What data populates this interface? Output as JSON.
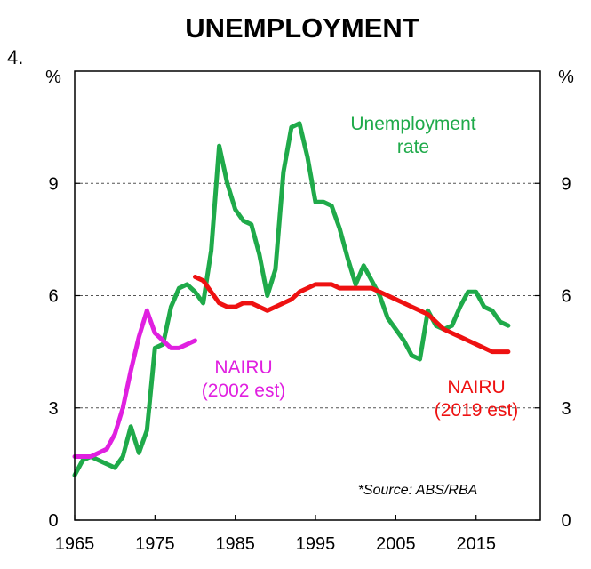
{
  "figure_number": "4.",
  "chart_data": {
    "type": "line",
    "title": "UNEMPLOYMENT",
    "y_unit_left": "%",
    "y_unit_right": "%",
    "xlim": [
      1965,
      2023
    ],
    "ylim": [
      0,
      12
    ],
    "x_ticks": [
      1965,
      1975,
      1985,
      1995,
      2005,
      2015
    ],
    "y_ticks": [
      0,
      3,
      6,
      9
    ],
    "grid": "horizontal dashed at 3, 6, 9",
    "source": "*Source: ABS/RBA",
    "series": [
      {
        "name": "Unemployment rate",
        "label_lines": [
          "Unemployment",
          "rate"
        ],
        "color": "#1faa4a",
        "x": [
          1965,
          1966,
          1967,
          1968,
          1969,
          1970,
          1971,
          1972,
          1973,
          1974,
          1975,
          1976,
          1977,
          1978,
          1979,
          1980,
          1981,
          1982,
          1983,
          1984,
          1985,
          1986,
          1987,
          1988,
          1989,
          1990,
          1991,
          1992,
          1993,
          1994,
          1995,
          1996,
          1997,
          1998,
          1999,
          2000,
          2001,
          2002,
          2003,
          2004,
          2005,
          2006,
          2007,
          2008,
          2009,
          2010,
          2011,
          2012,
          2013,
          2014,
          2015,
          2016,
          2017,
          2018,
          2019
        ],
        "y": [
          1.2,
          1.6,
          1.7,
          1.6,
          1.5,
          1.4,
          1.7,
          2.5,
          1.8,
          2.4,
          4.6,
          4.7,
          5.7,
          6.2,
          6.3,
          6.1,
          5.8,
          7.2,
          10.0,
          9.0,
          8.3,
          8.0,
          7.9,
          7.1,
          6.0,
          6.7,
          9.3,
          10.5,
          10.6,
          9.7,
          8.5,
          8.5,
          8.4,
          7.8,
          7.0,
          6.3,
          6.8,
          6.4,
          6.0,
          5.4,
          5.1,
          4.8,
          4.4,
          4.3,
          5.6,
          5.2,
          5.1,
          5.2,
          5.7,
          6.1,
          6.1,
          5.7,
          5.6,
          5.3,
          5.2
        ]
      },
      {
        "name": "NAIRU (2002 est)",
        "label_lines": [
          "NAIRU",
          "(2002 est)"
        ],
        "color": "#e020e0",
        "x": [
          1965,
          1966,
          1967,
          1968,
          1969,
          1970,
          1971,
          1972,
          1973,
          1974,
          1975,
          1976,
          1977,
          1978,
          1979,
          1980
        ],
        "y": [
          1.7,
          1.7,
          1.7,
          1.8,
          1.9,
          2.3,
          3.0,
          4.0,
          4.9,
          5.6,
          5.0,
          4.8,
          4.6,
          4.6,
          4.7,
          4.8
        ]
      },
      {
        "name": "NAIRU (2019 est)",
        "label_lines": [
          "NAIRU",
          "(2019 est)"
        ],
        "color": "#ee1111",
        "x": [
          1980,
          1981,
          1982,
          1983,
          1984,
          1985,
          1986,
          1987,
          1988,
          1989,
          1990,
          1991,
          1992,
          1993,
          1994,
          1995,
          1996,
          1997,
          1998,
          1999,
          2000,
          2001,
          2002,
          2003,
          2004,
          2005,
          2006,
          2007,
          2008,
          2009,
          2010,
          2011,
          2012,
          2013,
          2014,
          2015,
          2016,
          2017,
          2018,
          2019
        ],
        "y": [
          6.5,
          6.4,
          6.1,
          5.8,
          5.7,
          5.7,
          5.8,
          5.8,
          5.7,
          5.6,
          5.7,
          5.8,
          5.9,
          6.1,
          6.2,
          6.3,
          6.3,
          6.3,
          6.2,
          6.2,
          6.2,
          6.2,
          6.2,
          6.1,
          6.0,
          5.9,
          5.8,
          5.7,
          5.6,
          5.5,
          5.3,
          5.1,
          5.0,
          4.9,
          4.8,
          4.7,
          4.6,
          4.5,
          4.5,
          4.5
        ]
      }
    ]
  }
}
